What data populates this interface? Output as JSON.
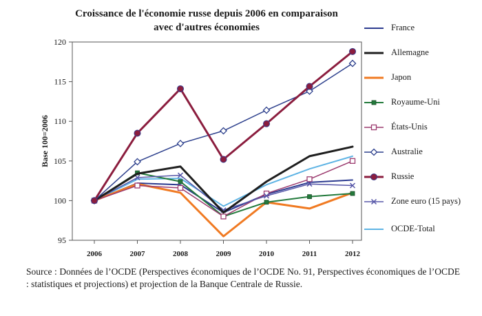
{
  "chart_data": {
    "type": "line",
    "title": "Croissance de l'économie russe depuis 2006 en comparaison avec d'autres économies",
    "xlabel": "",
    "ylabel": "Base 100=2006",
    "categories": [
      "2006",
      "2007",
      "2008",
      "2009",
      "2010",
      "2011",
      "2012"
    ],
    "ylim": [
      95,
      120
    ],
    "yticks": [
      "95",
      "100",
      "105",
      "110",
      "115",
      "120"
    ],
    "grid": false,
    "legend_position": "right",
    "series": [
      {
        "name": "France",
        "color": "#2b3a8f",
        "marker": "none",
        "width": 2,
        "values": [
          100,
          102.2,
          102.0,
          98.5,
          100.8,
          102.3,
          102.6
        ]
      },
      {
        "name": "Allemagne",
        "color": "#1e1e1e",
        "marker": "none",
        "width": 3,
        "values": [
          100,
          103.4,
          104.3,
          98.5,
          102.4,
          105.6,
          106.8
        ]
      },
      {
        "name": "Japon",
        "color": "#f07a22",
        "marker": "none",
        "width": 3,
        "values": [
          100,
          102.1,
          101.0,
          95.5,
          99.8,
          99.0,
          101.0
        ]
      },
      {
        "name": "Royaume-Uni",
        "color": "#237a3c",
        "marker": "filled-square",
        "width": 2,
        "values": [
          100,
          103.5,
          102.4,
          98.0,
          99.8,
          100.5,
          100.9
        ]
      },
      {
        "name": "États-Unis",
        "color": "#9b3a6e",
        "marker": "open-square",
        "width": 1.5,
        "values": [
          100,
          101.9,
          101.6,
          98.0,
          100.9,
          102.7,
          105.0
        ]
      },
      {
        "name": "Australie",
        "color": "#2c3f8c",
        "marker": "open-diamond",
        "width": 1.5,
        "values": [
          100,
          104.9,
          107.2,
          108.8,
          111.4,
          113.8,
          117.3
        ]
      },
      {
        "name": "Russie",
        "color": "#8b1d3e",
        "marker": "filled-circle",
        "width": 3,
        "values": [
          100,
          108.5,
          114.1,
          105.2,
          109.7,
          114.4,
          118.8
        ]
      },
      {
        "name": "Zone euro (15 pays)",
        "color": "#5656a8",
        "marker": "cross",
        "width": 1.5,
        "values": [
          100,
          102.9,
          103.2,
          98.8,
          100.6,
          102.1,
          101.9
        ]
      },
      {
        "name": "OCDE-Total",
        "color": "#5db3e4",
        "marker": "none",
        "width": 2,
        "values": [
          100,
          102.7,
          102.8,
          99.3,
          102.0,
          104.0,
          105.6
        ]
      }
    ]
  },
  "source_note": "Source : Données de l’OCDE (Perspectives économiques de l’OCDE No. 91, Perspectives économiques de l’OCDE : statistiques et projections) et projection de la Banque Centrale de Russie."
}
